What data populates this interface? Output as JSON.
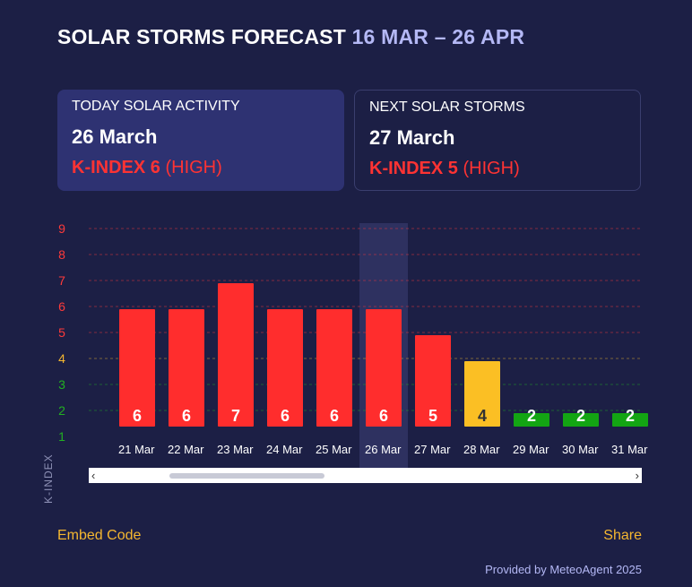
{
  "header": {
    "title": "SOLAR STORMS FORECAST",
    "range": "16 MAR – 26 APR"
  },
  "today": {
    "label": "TODAY SOLAR ACTIVITY",
    "date": "26 March",
    "kindex": "K-INDEX 6",
    "level": "(HIGH)"
  },
  "next": {
    "label": "NEXT SOLAR STORMS",
    "date": "27 March",
    "kindex": "K-INDEX 5",
    "level": "(HIGH)"
  },
  "colors": {
    "high": "#ff2d2d",
    "moderate": "#fbbf24",
    "low": "#13a513",
    "highlight": "#2e3160"
  },
  "chart_data": {
    "type": "bar",
    "title": "",
    "xlabel": "",
    "ylabel": "K-INDEX",
    "ylim": [
      1,
      9
    ],
    "yticks": [
      "1",
      "2",
      "3",
      "4",
      "5",
      "6",
      "7",
      "8",
      "9"
    ],
    "categories": [
      "21 Mar",
      "22 Mar",
      "23 Mar",
      "24 Mar",
      "25 Mar",
      "26 Mar",
      "27 Mar",
      "28 Mar",
      "29 Mar",
      "30 Mar",
      "31 Mar"
    ],
    "values": [
      6,
      6,
      7,
      6,
      6,
      6,
      5,
      4,
      2,
      2,
      2
    ],
    "highlighted_category": "26 Mar",
    "grid": true
  },
  "scrollbar": {
    "left_arrow": "‹",
    "right_arrow": "›"
  },
  "footer": {
    "embed": "Embed Code",
    "share": "Share",
    "credit": "Provided by MeteoAgent 2025"
  }
}
